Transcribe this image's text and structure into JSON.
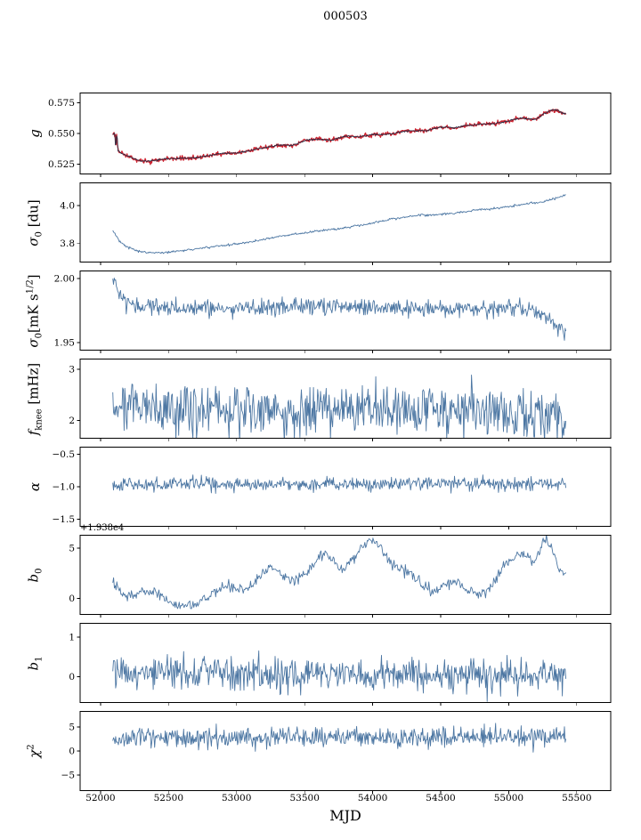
{
  "chart_data": {
    "type": "line",
    "title": "000503",
    "xlabel": "MJD",
    "grid": false,
    "legend": "none",
    "xlim": [
      51850,
      55750
    ],
    "data_xrange": [
      52090,
      55420
    ],
    "xticks": [
      52000,
      52500,
      53000,
      53500,
      54000,
      54500,
      55000,
      55500
    ],
    "xtick_labels": [
      "52000",
      "52500",
      "53000",
      "53500",
      "54000",
      "54500",
      "55000",
      "55500"
    ],
    "panels": [
      {
        "id": "g",
        "label": {
          "sym": "g"
        },
        "ylim": [
          0.517,
          0.583
        ],
        "yticks": [
          0.525,
          0.55,
          0.575
        ],
        "ytick_labels": [
          "0.525",
          "0.550",
          "0.575"
        ],
        "series": [
          {
            "name": "gain-data",
            "color": "#cd2330",
            "width": 1.3,
            "noise": 0.0009,
            "n": 700,
            "spikes": [
              {
                "x": 52113,
                "a": 0.0045,
                "w": 13
              }
            ],
            "trend": [
              [
                52090,
                0.549
              ],
              [
                52105,
                0.55
              ],
              [
                52112,
                0.537
              ],
              [
                52120,
                0.551
              ],
              [
                52128,
                0.536
              ],
              [
                52140,
                0.535
              ],
              [
                52170,
                0.533
              ],
              [
                52200,
                0.5315
              ],
              [
                52250,
                0.5292
              ],
              [
                52300,
                0.5276
              ],
              [
                52350,
                0.5274
              ],
              [
                52400,
                0.528
              ],
              [
                52450,
                0.529
              ],
              [
                52500,
                0.5296
              ],
              [
                52550,
                0.5294
              ],
              [
                52600,
                0.53
              ],
              [
                52650,
                0.5298
              ],
              [
                52700,
                0.5303
              ],
              [
                52750,
                0.5311
              ],
              [
                52800,
                0.5322
              ],
              [
                52850,
                0.533
              ],
              [
                52900,
                0.5336
              ],
              [
                52950,
                0.5338
              ],
              [
                53000,
                0.5341
              ],
              [
                53050,
                0.535
              ],
              [
                53100,
                0.536
              ],
              [
                53150,
                0.5373
              ],
              [
                53200,
                0.5381
              ],
              [
                53250,
                0.5393
              ],
              [
                53300,
                0.5403
              ],
              [
                53350,
                0.5406
              ],
              [
                53400,
                0.54
              ],
              [
                53450,
                0.5416
              ],
              [
                53500,
                0.5443
              ],
              [
                53550,
                0.5451
              ],
              [
                53600,
                0.5453
              ],
              [
                53650,
                0.545
              ],
              [
                53700,
                0.5446
              ],
              [
                53750,
                0.5461
              ],
              [
                53800,
                0.5479
              ],
              [
                53850,
                0.5476
              ],
              [
                53900,
                0.5473
              ],
              [
                53950,
                0.5481
              ],
              [
                54000,
                0.5493
              ],
              [
                54050,
                0.5491
              ],
              [
                54100,
                0.5492
              ],
              [
                54150,
                0.5499
              ],
              [
                54200,
                0.5511
              ],
              [
                54250,
                0.5519
              ],
              [
                54300,
                0.5523
              ],
              [
                54350,
                0.5521
              ],
              [
                54400,
                0.5523
              ],
              [
                54450,
                0.5539
              ],
              [
                54500,
                0.5553
              ],
              [
                54550,
                0.5549
              ],
              [
                54600,
                0.5546
              ],
              [
                54650,
                0.5556
              ],
              [
                54700,
                0.5566
              ],
              [
                54750,
                0.5571
              ],
              [
                54800,
                0.5576
              ],
              [
                54850,
                0.5579
              ],
              [
                54900,
                0.5581
              ],
              [
                54950,
                0.5591
              ],
              [
                55000,
                0.5603
              ],
              [
                55050,
                0.5616
              ],
              [
                55100,
                0.5626
              ],
              [
                55150,
                0.5619
              ],
              [
                55200,
                0.5613
              ],
              [
                55250,
                0.5653
              ],
              [
                55300,
                0.5683
              ],
              [
                55330,
                0.5693
              ],
              [
                55360,
                0.5689
              ],
              [
                55390,
                0.5666
              ],
              [
                55420,
                0.566
              ]
            ]
          },
          {
            "name": "gain-smoothed",
            "color": "#2e2e44",
            "width": 0.9,
            "noise": 0.0003,
            "n": 700,
            "spikes": [
              {
                "x": 52113,
                "a": 0.002,
                "w": 12
              }
            ]
          }
        ]
      },
      {
        "id": "sigma0-du",
        "label": {
          "sym": "σ",
          "sub": "0",
          "unit": " [du]"
        },
        "ylim": [
          3.7,
          4.12
        ],
        "yticks": [
          3.8,
          4.0
        ],
        "ytick_labels": [
          "3.8",
          "4.0"
        ],
        "series": [
          {
            "name": "sigma0-du",
            "color": "#4d77a3",
            "width": 0.9,
            "noise": 0.003,
            "n": 620,
            "trend": [
              [
                52090,
                3.865
              ],
              [
                52150,
                3.8
              ],
              [
                52250,
                3.762
              ],
              [
                52350,
                3.75
              ],
              [
                52450,
                3.75
              ],
              [
                52550,
                3.756
              ],
              [
                52650,
                3.765
              ],
              [
                52750,
                3.774
              ],
              [
                52850,
                3.784
              ],
              [
                52950,
                3.79
              ],
              [
                53050,
                3.8
              ],
              [
                53150,
                3.814
              ],
              [
                53250,
                3.828
              ],
              [
                53350,
                3.84
              ],
              [
                53450,
                3.85
              ],
              [
                53550,
                3.86
              ],
              [
                53650,
                3.869
              ],
              [
                53750,
                3.875
              ],
              [
                53850,
                3.889
              ],
              [
                53950,
                3.9
              ],
              [
                54050,
                3.914
              ],
              [
                54150,
                3.929
              ],
              [
                54250,
                3.94
              ],
              [
                54350,
                3.949
              ],
              [
                54450,
                3.95
              ],
              [
                54550,
                3.955
              ],
              [
                54650,
                3.964
              ],
              [
                54750,
                3.974
              ],
              [
                54850,
                3.98
              ],
              [
                54950,
                3.989
              ],
              [
                55050,
                4.0
              ],
              [
                55150,
                4.01
              ],
              [
                55250,
                4.02
              ],
              [
                55350,
                4.04
              ],
              [
                55420,
                4.056
              ]
            ]
          }
        ]
      },
      {
        "id": "sigma0-mk",
        "label": {
          "sym": "σ",
          "sub": "0",
          "unit_pre": "[mK s",
          "sup": "1/2",
          "unit_post": "]"
        },
        "ylim": [
          1.944,
          2.006
        ],
        "yticks": [
          1.95,
          2.0
        ],
        "ytick_labels": [
          "1.95",
          "2.00"
        ],
        "series": [
          {
            "name": "sigma0-mK",
            "color": "#4d77a3",
            "width": 0.9,
            "noise": 0.0032,
            "n": 640,
            "trend": [
              [
                52090,
                2.001
              ],
              [
                52120,
                1.992
              ],
              [
                52160,
                1.984
              ],
              [
                52240,
                1.979
              ],
              [
                52600,
                1.977
              ],
              [
                53000,
                1.977
              ],
              [
                53400,
                1.978
              ],
              [
                53800,
                1.978
              ],
              [
                54200,
                1.977
              ],
              [
                54600,
                1.976
              ],
              [
                54900,
                1.975
              ],
              [
                55100,
                1.977
              ],
              [
                55200,
                1.974
              ],
              [
                55300,
                1.969
              ],
              [
                55370,
                1.963
              ],
              [
                55420,
                1.957
              ]
            ]
          }
        ]
      },
      {
        "id": "fknee",
        "label": {
          "sym": "f",
          "sub": "knee",
          "unit": " [mHz]"
        },
        "ylim": [
          1.65,
          3.2
        ],
        "yticks": [
          2,
          3
        ],
        "ytick_labels": [
          "2",
          "3"
        ],
        "series": [
          {
            "name": "f-knee",
            "color": "#4d77a3",
            "width": 0.9,
            "noise": 0.24,
            "n": 640,
            "trend": [
              [
                52090,
                2.35
              ],
              [
                52200,
                2.25
              ],
              [
                52600,
                2.2
              ],
              [
                53400,
                2.2
              ],
              [
                54200,
                2.2
              ],
              [
                54800,
                2.18
              ],
              [
                55200,
                2.12
              ],
              [
                55420,
                2.05
              ]
            ]
          }
        ]
      },
      {
        "id": "alpha",
        "label": {
          "sym": "α"
        },
        "ylim": [
          -1.61,
          -0.39
        ],
        "yticks": [
          -1.5,
          -1.0,
          -0.5
        ],
        "ytick_labels": [
          "−1.5",
          "−1.0",
          "−0.5"
        ],
        "series": [
          {
            "name": "alpha",
            "color": "#4d77a3",
            "width": 0.9,
            "noise": 0.05,
            "n": 640,
            "trend": [
              [
                52090,
                -0.965
              ],
              [
                55420,
                -0.955
              ]
            ]
          }
        ]
      },
      {
        "id": "b0",
        "label": {
          "sym": "b",
          "sub": "0"
        },
        "offset_text": "+1.938e4",
        "ylim": [
          -1.6,
          6.3
        ],
        "yticks": [
          0,
          5
        ],
        "ytick_labels": [
          "0",
          "5"
        ],
        "series": [
          {
            "name": "b0",
            "color": "#4d77a3",
            "width": 0.9,
            "noise": 0.28,
            "n": 560,
            "trend": [
              [
                52090,
                1.6
              ],
              [
                52160,
                0.5
              ],
              [
                52240,
                0.1
              ],
              [
                52330,
                0.8
              ],
              [
                52410,
                0.6
              ],
              [
                52500,
                -0.3
              ],
              [
                52600,
                -0.75
              ],
              [
                52700,
                -0.6
              ],
              [
                52800,
                0.3
              ],
              [
                52900,
                1.3
              ],
              [
                52980,
                1.0
              ],
              [
                53060,
                0.8
              ],
              [
                53150,
                1.9
              ],
              [
                53250,
                3.3
              ],
              [
                53330,
                2.4
              ],
              [
                53420,
                1.6
              ],
              [
                53520,
                2.7
              ],
              [
                53620,
                4.3
              ],
              [
                53700,
                3.9
              ],
              [
                53780,
                2.8
              ],
              [
                53870,
                4.1
              ],
              [
                53950,
                5.6
              ],
              [
                54030,
                5.7
              ],
              [
                54120,
                3.9
              ],
              [
                54200,
                2.9
              ],
              [
                54280,
                2.6
              ],
              [
                54370,
                1.3
              ],
              [
                54450,
                0.6
              ],
              [
                54530,
                1.3
              ],
              [
                54610,
                1.6
              ],
              [
                54700,
                0.9
              ],
              [
                54790,
                0.4
              ],
              [
                54880,
                1.4
              ],
              [
                54960,
                3.1
              ],
              [
                55040,
                4.1
              ],
              [
                55120,
                4.3
              ],
              [
                55200,
                3.6
              ],
              [
                55260,
                5.9
              ],
              [
                55320,
                5.0
              ],
              [
                55370,
                3.1
              ],
              [
                55420,
                2.0
              ]
            ]
          }
        ]
      },
      {
        "id": "b1",
        "label": {
          "sym": "b",
          "sub": "1"
        },
        "ylim": [
          -0.65,
          1.35
        ],
        "yticks": [
          0,
          1
        ],
        "ytick_labels": [
          "0",
          "1"
        ],
        "series": [
          {
            "name": "b1",
            "color": "#4d77a3",
            "width": 0.9,
            "noise": 0.21,
            "n": 640,
            "spikes": [
              {
                "x": 52108,
                "a": 0.55,
                "w": 8
              }
            ],
            "trend": [
              [
                52090,
                0.08
              ],
              [
                55420,
                0.05
              ]
            ]
          }
        ]
      },
      {
        "id": "chi2",
        "label": {
          "sym": "χ",
          "sup": "2"
        },
        "ylim": [
          -8.2,
          8.2
        ],
        "yticks": [
          -5,
          0,
          5
        ],
        "ytick_labels": [
          "−5",
          "0",
          "5"
        ],
        "series": [
          {
            "name": "chi2",
            "color": "#4d77a3",
            "width": 0.9,
            "noise": 1.05,
            "n": 640,
            "trend": [
              [
                52090,
                2.6
              ],
              [
                52600,
                2.9
              ],
              [
                53200,
                2.7
              ],
              [
                53800,
                2.9
              ],
              [
                54400,
                2.7
              ],
              [
                55000,
                2.9
              ],
              [
                55420,
                3.1
              ]
            ]
          }
        ]
      }
    ]
  }
}
